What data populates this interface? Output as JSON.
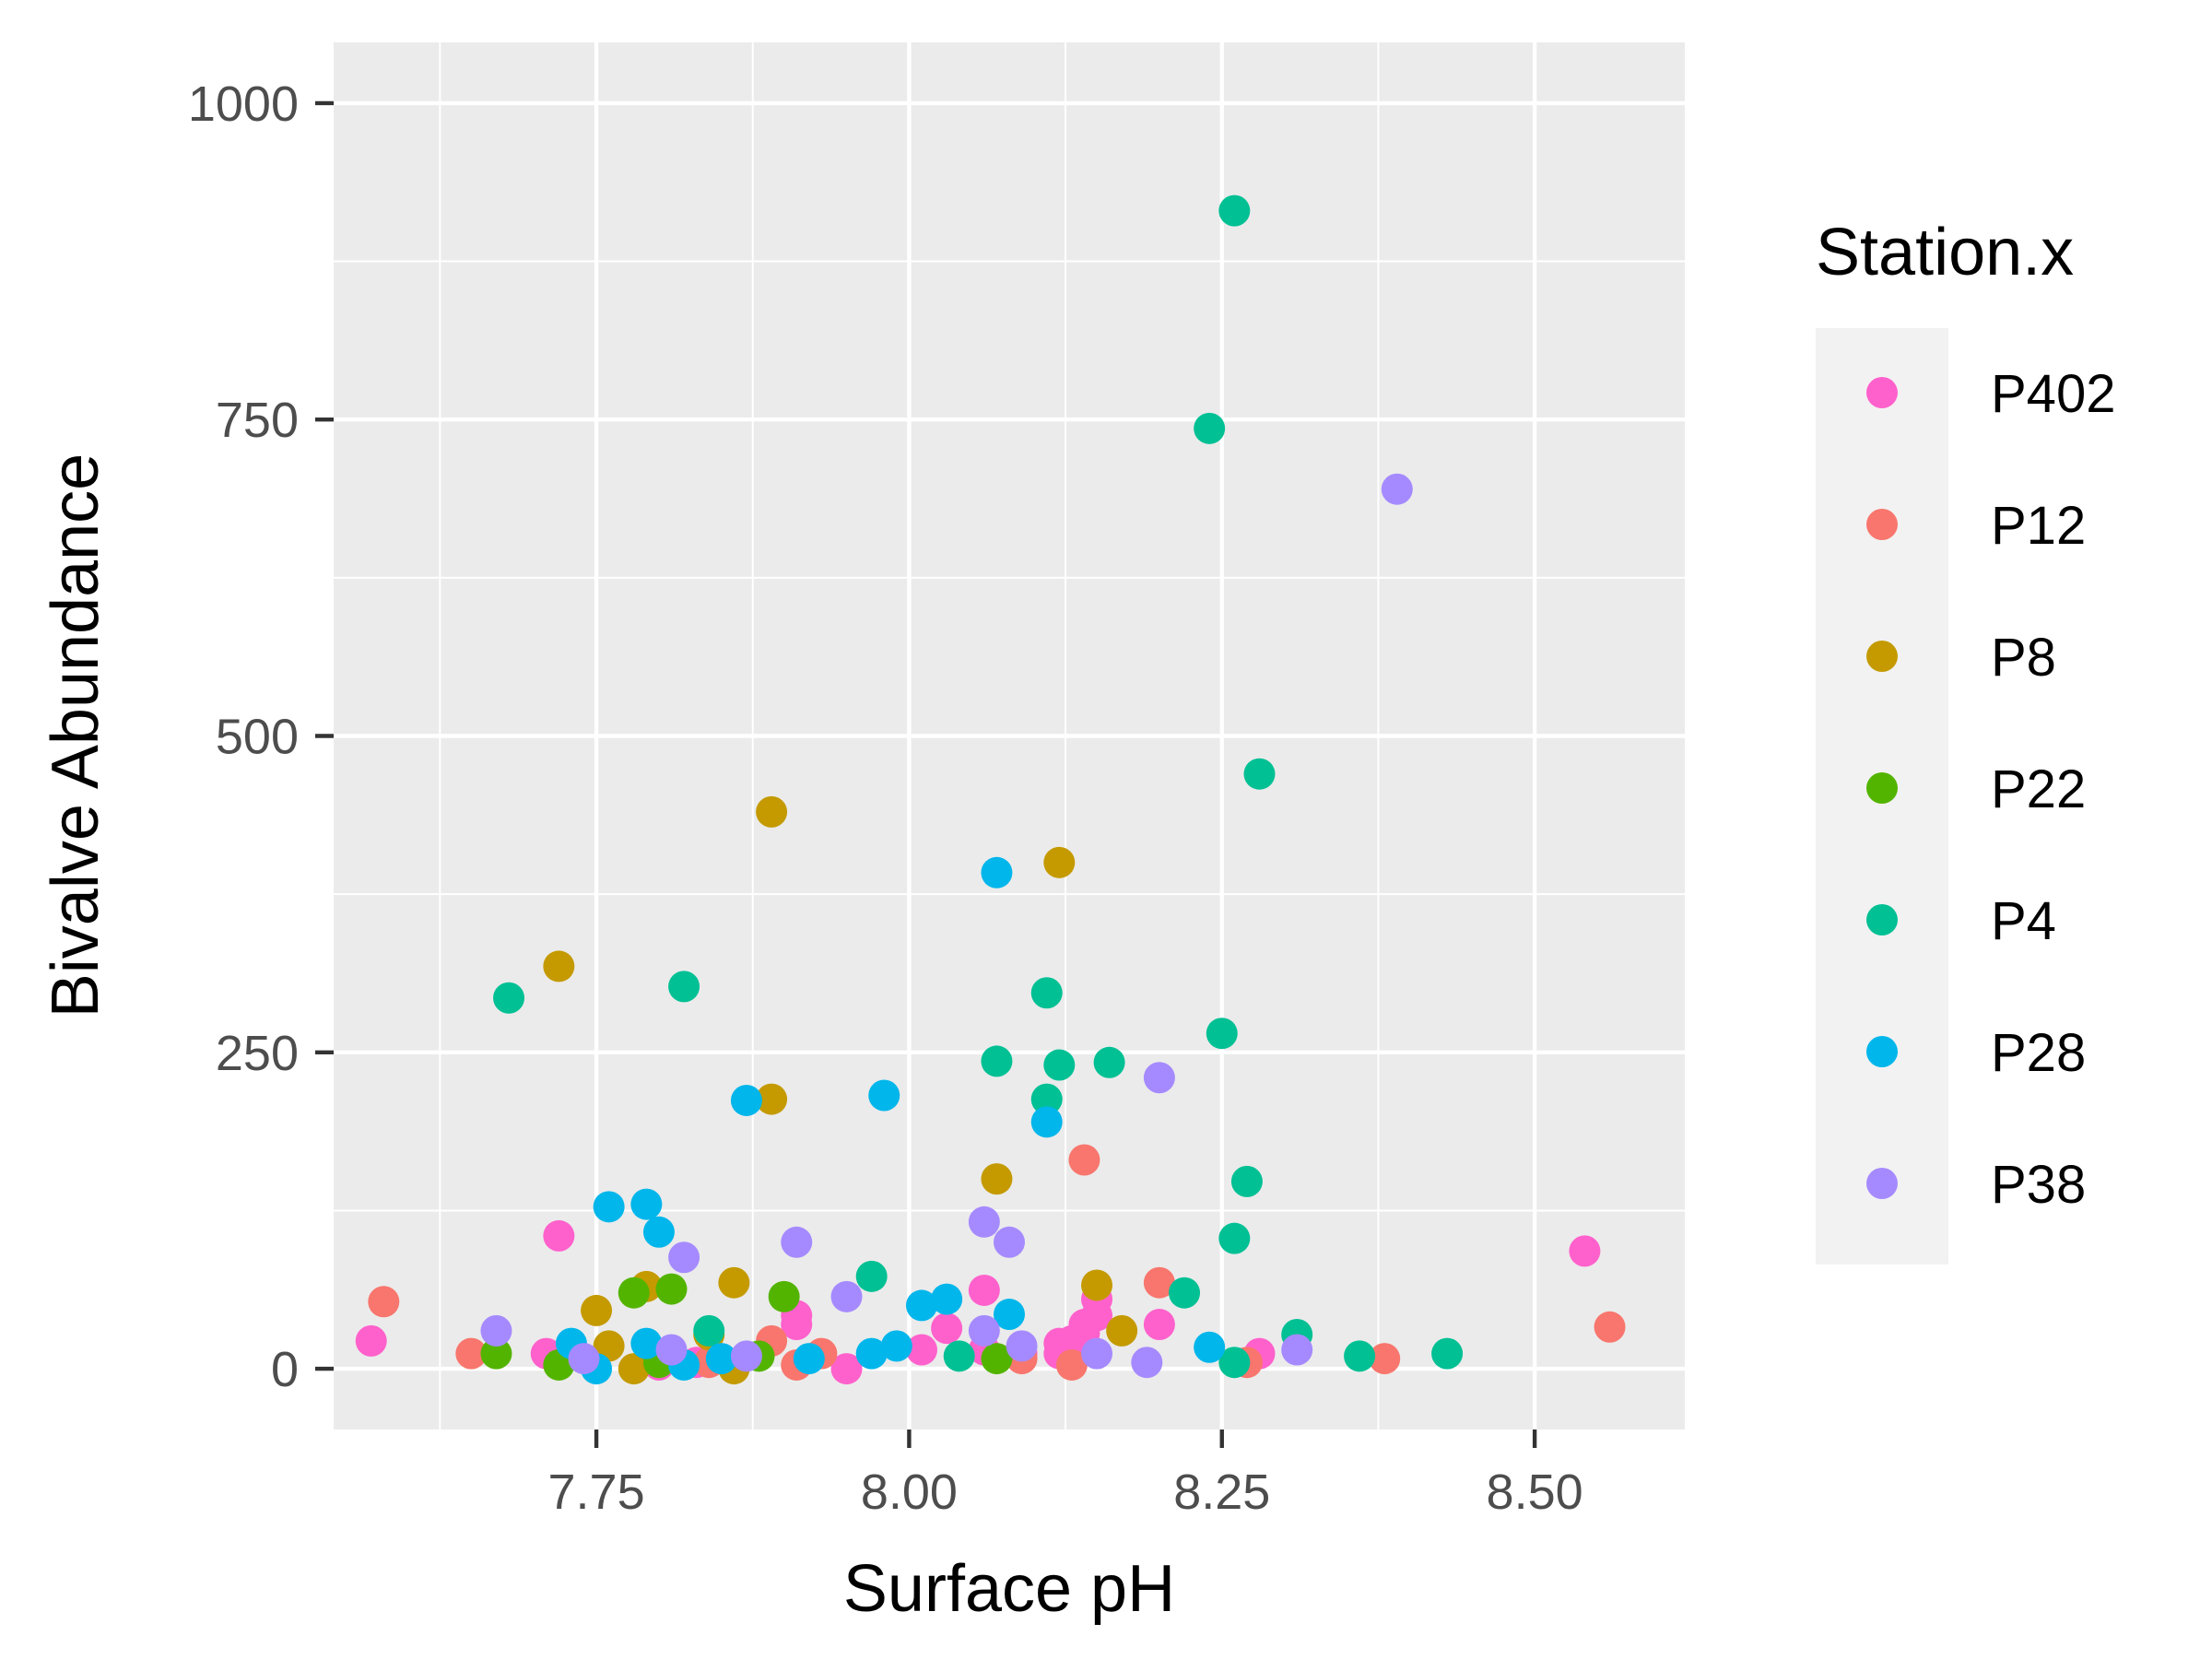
{
  "chart_data": {
    "type": "scatter",
    "title": "",
    "xlabel": "Surface pH",
    "ylabel": "Bivalve Abundance",
    "xlim": [
      7.54,
      8.62
    ],
    "ylim": [
      -48,
      1048
    ],
    "x_ticks": [
      7.75,
      8.0,
      8.25,
      8.5
    ],
    "x_tick_labels": [
      "7.75",
      "8.00",
      "8.25",
      "8.50"
    ],
    "y_ticks": [
      0,
      250,
      500,
      750,
      1000
    ],
    "y_tick_labels": [
      "0",
      "250",
      "500",
      "750",
      "1000"
    ],
    "grid": true,
    "legend": {
      "title": "Station.x",
      "position": "right"
    },
    "series": [
      {
        "name": "P402",
        "color": "#FF61CC",
        "points": [
          [
            7.57,
            22
          ],
          [
            7.71,
            12
          ],
          [
            7.72,
            105
          ],
          [
            7.8,
            3
          ],
          [
            7.91,
            35
          ],
          [
            7.91,
            42
          ],
          [
            7.95,
            0
          ],
          [
            8.01,
            15
          ],
          [
            8.03,
            32
          ],
          [
            8.06,
            62
          ],
          [
            8.06,
            15
          ],
          [
            8.09,
            12
          ],
          [
            8.12,
            12
          ],
          [
            8.12,
            20
          ],
          [
            8.14,
            28
          ],
          [
            8.15,
            42
          ],
          [
            8.15,
            55
          ],
          [
            8.14,
            35
          ],
          [
            8.2,
            35
          ],
          [
            8.28,
            12
          ],
          [
            8.54,
            93
          ],
          [
            7.83,
            5
          ],
          [
            8.13,
            22
          ]
        ]
      },
      {
        "name": "P12",
        "color": "#F8766D",
        "points": [
          [
            7.58,
            53
          ],
          [
            7.65,
            12
          ],
          [
            7.84,
            5
          ],
          [
            7.89,
            22
          ],
          [
            7.91,
            3
          ],
          [
            7.93,
            12
          ],
          [
            8.09,
            8
          ],
          [
            8.13,
            3
          ],
          [
            8.14,
            165
          ],
          [
            8.2,
            68
          ],
          [
            8.27,
            5
          ],
          [
            8.38,
            8
          ],
          [
            8.56,
            33
          ]
        ]
      },
      {
        "name": "P8",
        "color": "#C49A00",
        "points": [
          [
            7.72,
            318
          ],
          [
            7.75,
            46
          ],
          [
            7.76,
            18
          ],
          [
            7.78,
            0
          ],
          [
            7.79,
            65
          ],
          [
            7.84,
            27
          ],
          [
            7.86,
            0
          ],
          [
            7.86,
            68
          ],
          [
            7.89,
            440
          ],
          [
            7.89,
            213
          ],
          [
            8.07,
            150
          ],
          [
            8.12,
            400
          ],
          [
            8.15,
            66
          ],
          [
            8.17,
            30
          ]
        ]
      },
      {
        "name": "P22",
        "color": "#53B400",
        "points": [
          [
            7.67,
            12
          ],
          [
            7.72,
            3
          ],
          [
            7.78,
            60
          ],
          [
            7.8,
            5
          ],
          [
            7.81,
            63
          ],
          [
            7.88,
            10
          ],
          [
            7.9,
            57
          ],
          [
            8.07,
            8
          ]
        ]
      },
      {
        "name": "P4",
        "color": "#00C094",
        "points": [
          [
            7.68,
            293
          ],
          [
            7.82,
            302
          ],
          [
            7.84,
            30
          ],
          [
            7.97,
            73
          ],
          [
            8.04,
            10
          ],
          [
            8.07,
            243
          ],
          [
            8.11,
            297
          ],
          [
            8.11,
            213
          ],
          [
            8.12,
            240
          ],
          [
            8.16,
            242
          ],
          [
            8.22,
            60
          ],
          [
            8.24,
            743
          ],
          [
            8.25,
            265
          ],
          [
            8.26,
            915
          ],
          [
            8.26,
            103
          ],
          [
            8.26,
            5
          ],
          [
            8.28,
            470
          ],
          [
            8.27,
            148
          ],
          [
            8.31,
            27
          ],
          [
            8.36,
            10
          ],
          [
            8.43,
            12
          ]
        ]
      },
      {
        "name": "P28",
        "color": "#00B6EB",
        "points": [
          [
            7.73,
            20
          ],
          [
            7.75,
            0
          ],
          [
            7.76,
            128
          ],
          [
            7.79,
            130
          ],
          [
            7.79,
            20
          ],
          [
            7.8,
            108
          ],
          [
            7.82,
            3
          ],
          [
            7.85,
            8
          ],
          [
            7.87,
            212
          ],
          [
            7.92,
            8
          ],
          [
            7.97,
            12
          ],
          [
            7.98,
            216
          ],
          [
            7.99,
            18
          ],
          [
            8.01,
            50
          ],
          [
            8.03,
            55
          ],
          [
            8.07,
            392
          ],
          [
            8.08,
            43
          ],
          [
            8.11,
            195
          ],
          [
            8.24,
            17
          ]
        ]
      },
      {
        "name": "P38",
        "color": "#A58AFF",
        "points": [
          [
            7.67,
            30
          ],
          [
            7.74,
            8
          ],
          [
            7.81,
            15
          ],
          [
            7.82,
            88
          ],
          [
            7.87,
            10
          ],
          [
            7.91,
            100
          ],
          [
            7.95,
            57
          ],
          [
            8.06,
            116
          ],
          [
            8.06,
            30
          ],
          [
            8.08,
            100
          ],
          [
            8.09,
            18
          ],
          [
            8.15,
            12
          ],
          [
            8.19,
            5
          ],
          [
            8.2,
            230
          ],
          [
            8.31,
            15
          ],
          [
            8.39,
            695
          ]
        ]
      }
    ]
  }
}
